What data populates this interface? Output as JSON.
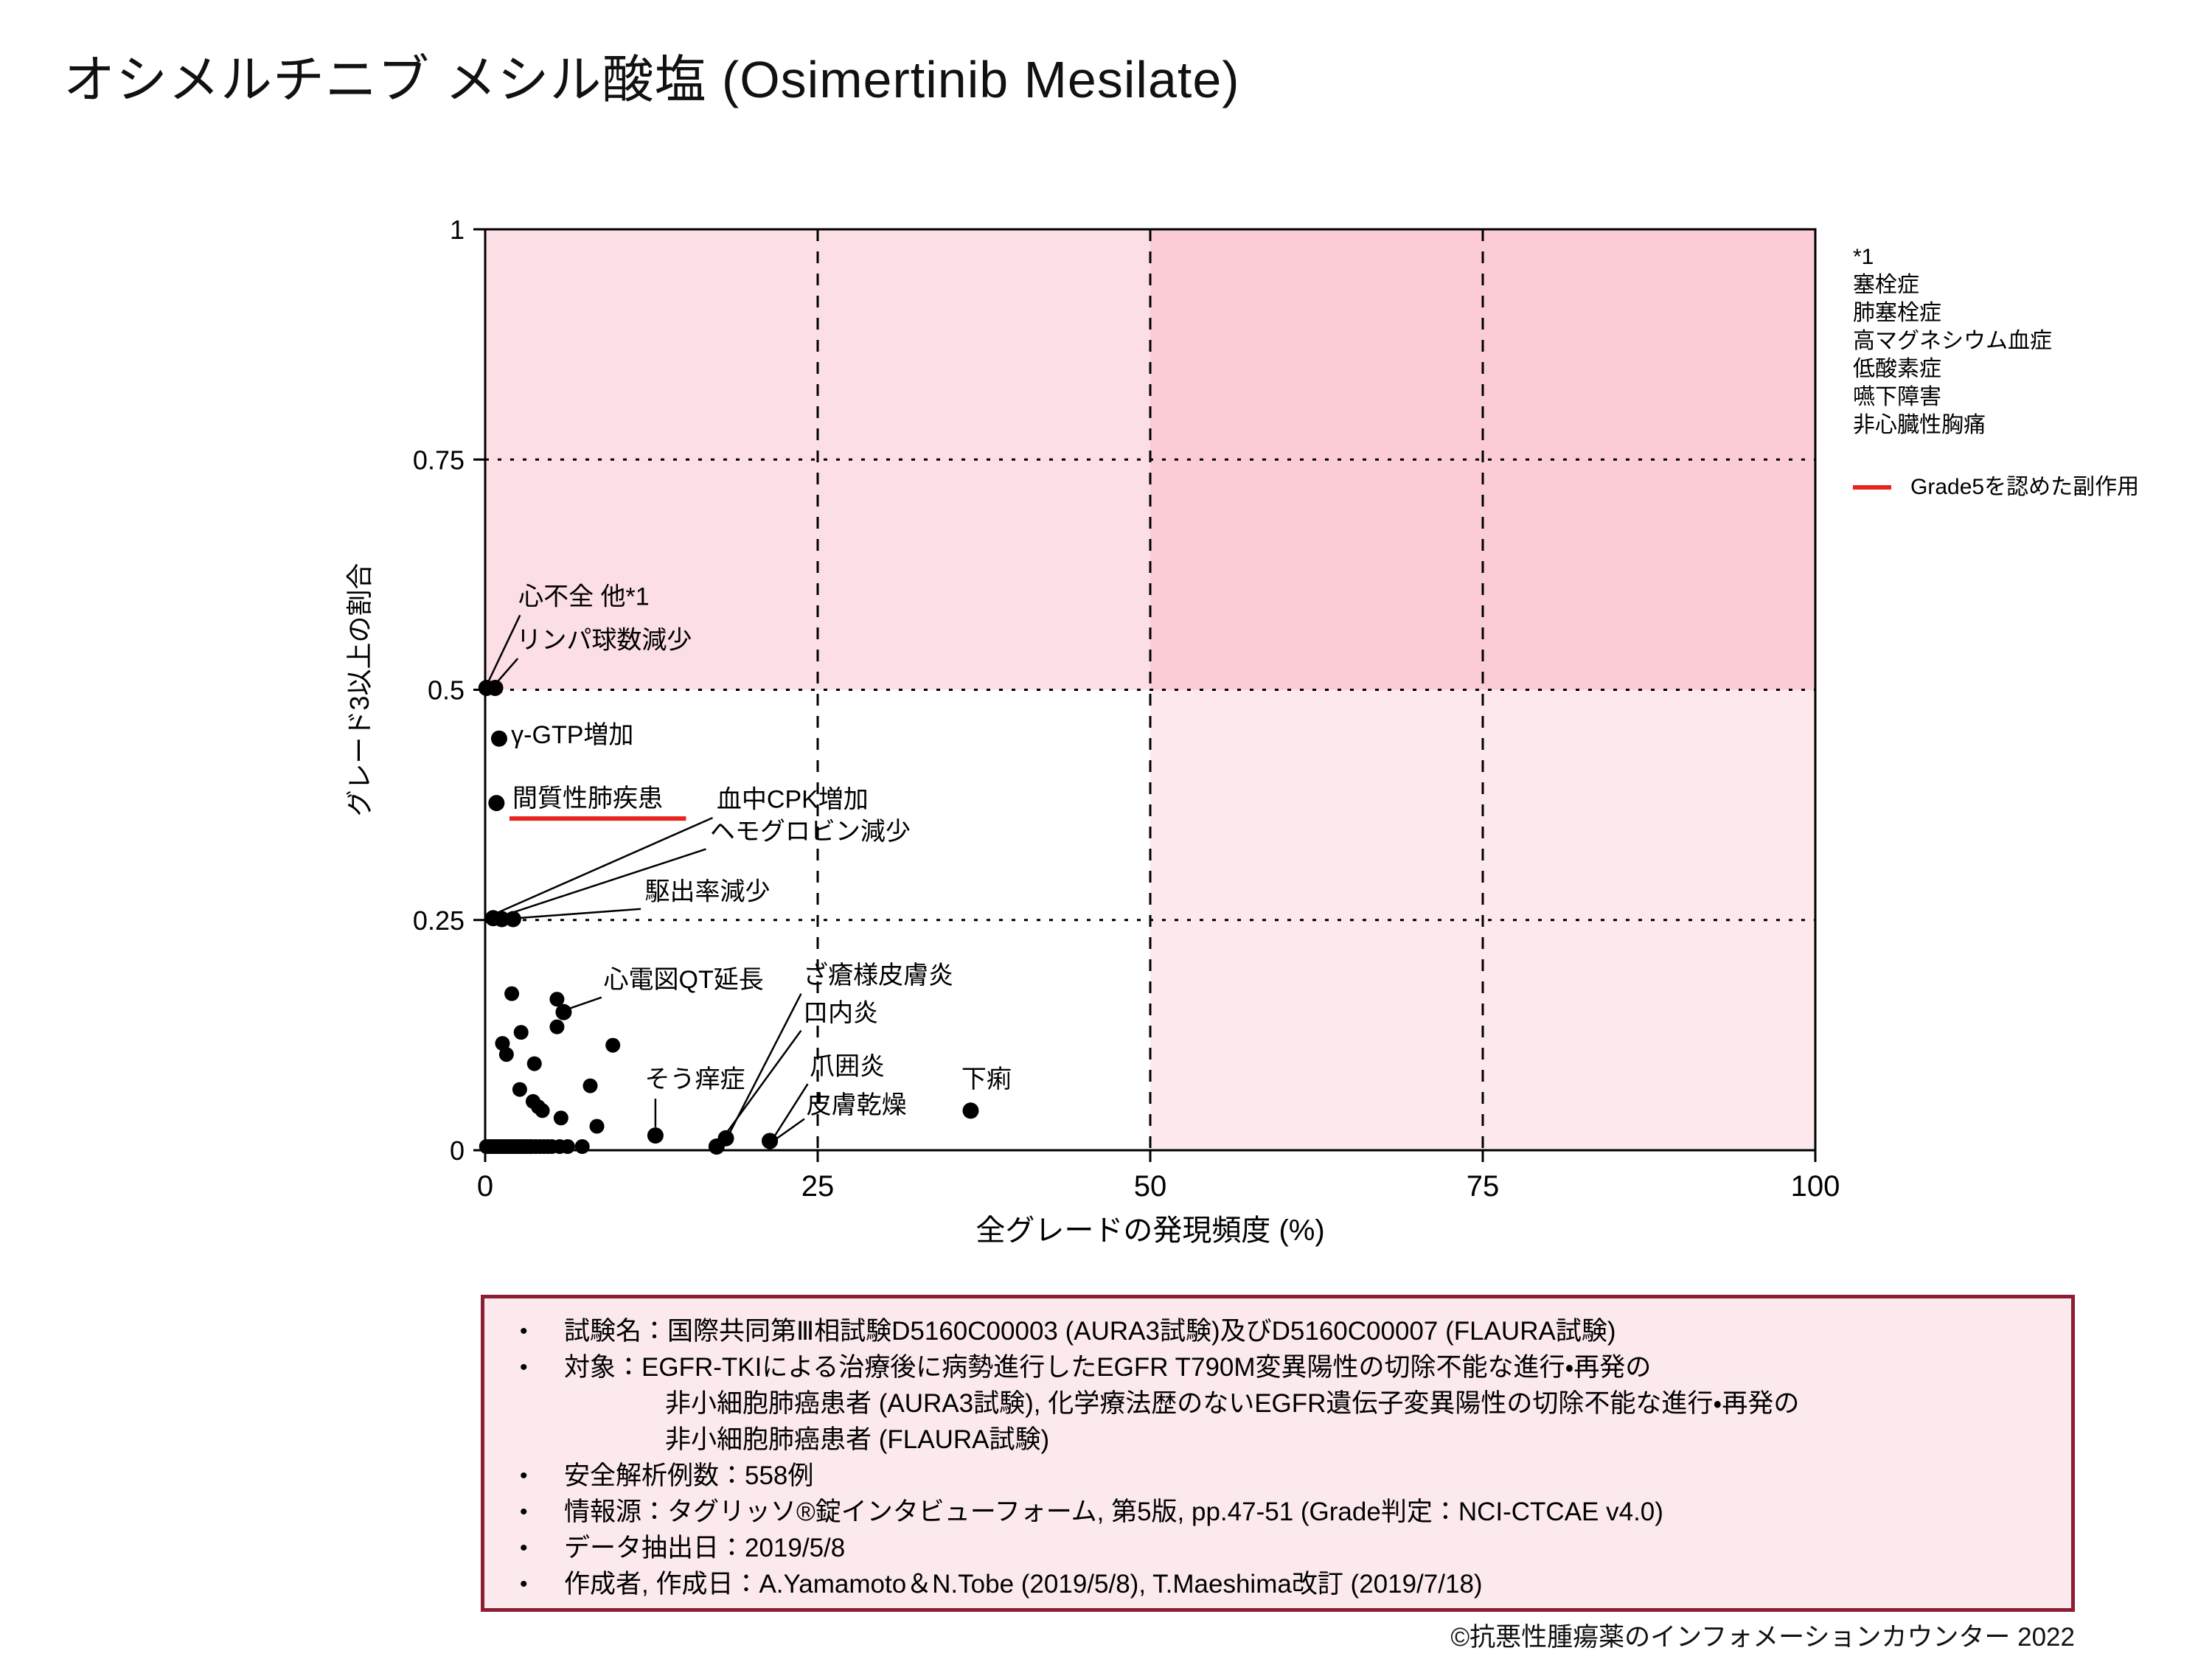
{
  "title": "オシメルチニブ メシル酸塩 (Osimertinib Mesilate)",
  "copyright": "©抗悪性腫瘍薬のインフォメーションカウンター 2022",
  "colors": {
    "grade5_red": "#e8251d",
    "region_light_pink": "#fcdee5",
    "region_dark_pink": "#fbccd6",
    "region_right_pink": "#fde8ec",
    "footer_bg": "#fbe9ed",
    "footer_border": "#8c1d33"
  },
  "legend": {
    "note_label": "*1",
    "note_items": [
      "塞栓症",
      "肺塞栓症",
      "高マグネシウム血症",
      "低酸素症",
      "嚥下障害",
      "非心臓性胸痛"
    ],
    "grade5_label": "Grade5を認めた副作用"
  },
  "footer": {
    "lines": [
      {
        "bullet": true,
        "indent": 0,
        "text": "試験名：国際共同第Ⅲ相試験D5160C00003 (AURA3試験)及びD5160C00007 (FLAURA試験)"
      },
      {
        "bullet": true,
        "indent": 0,
        "text": "対象：EGFR-TKIによる治療後に病勢進行したEGFR T790M変異陽性の切除不能な進行・再発の"
      },
      {
        "bullet": false,
        "indent": 1,
        "text": "非小細胞肺癌患者 (AURA3試験), 化学療法歴のないEGFR遺伝子変異陽性の切除不能な進行・再発の"
      },
      {
        "bullet": false,
        "indent": 1,
        "text": "非小細胞肺癌患者 (FLAURA試験)"
      },
      {
        "bullet": true,
        "indent": 0,
        "text": "安全解析例数：558例"
      },
      {
        "bullet": true,
        "indent": 0,
        "text": "情報源：タグリッソ®錠インタビューフォーム, 第5版, pp.47-51 (Grade判定：NCI-CTCAE v4.0)"
      },
      {
        "bullet": true,
        "indent": 0,
        "text": "データ抽出日：2019/5/8"
      },
      {
        "bullet": true,
        "indent": 0,
        "text": "作成者, 作成日：A.Yamamoto＆N.Tobe (2019/5/8), T.Maeshima改訂 (2019/7/18)"
      }
    ]
  },
  "chart_data": {
    "type": "scatter",
    "xlabel": "全グレードの発現頻度 (%)",
    "ylabel": "グレード3以上の割合",
    "xlim": [
      0,
      100
    ],
    "ylim": [
      0,
      1
    ],
    "grid": true,
    "x_ticks": [
      {
        "v": 0,
        "label": "0"
      },
      {
        "v": 25,
        "label": "25"
      },
      {
        "v": 50,
        "label": "50"
      },
      {
        "v": 75,
        "label": "75"
      },
      {
        "v": 100,
        "label": "100"
      }
    ],
    "y_ticks": [
      {
        "v": 0,
        "label": "0"
      },
      {
        "v": 0.25,
        "label": "0.25"
      },
      {
        "v": 0.5,
        "label": "0.5"
      },
      {
        "v": 0.75,
        "label": "0.75"
      },
      {
        "v": 1,
        "label": "1"
      }
    ],
    "grid_x": [
      25,
      50,
      75
    ],
    "grid_y": [
      0.25,
      0.5,
      0.75
    ],
    "regions": [
      {
        "x": [
          0,
          50
        ],
        "y": [
          0.5,
          1
        ],
        "color_key": "region_light_pink"
      },
      {
        "x": [
          50,
          100
        ],
        "y": [
          0.5,
          1
        ],
        "color_key": "region_dark_pink"
      },
      {
        "x": [
          50,
          100
        ],
        "y": [
          0,
          0.5
        ],
        "color_key": "region_right_pink"
      }
    ],
    "labeled_points": [
      {
        "label": "心不全 他*1",
        "x": 0.1,
        "y": 0.502,
        "lx": 2.5,
        "ly": 0.592,
        "leader": [
          2.62,
          0.581,
          0.18,
          0.507
        ]
      },
      {
        "label": "リンパ球数減少",
        "x": 0.75,
        "y": 0.502,
        "lx": 2.35,
        "ly": 0.545,
        "leader": [
          2.45,
          0.534,
          0.82,
          0.507
        ]
      },
      {
        "label": "γ-GTP増加",
        "x": 1.05,
        "y": 0.447,
        "lx": 1.95,
        "ly": 0.442
      },
      {
        "label": "間質性肺疾患",
        "x": 0.85,
        "y": 0.377,
        "lx": 2.05,
        "ly": 0.373,
        "underline": true,
        "underline_to": 15.1
      },
      {
        "label": "血中CPK増加",
        "x": 0.6,
        "y": 0.252,
        "lx": 17.4,
        "ly": 0.372,
        "leader": [
          17.1,
          0.361,
          0.78,
          0.257
        ]
      },
      {
        "label": "ヘモグロビン減少",
        "x": 1.25,
        "y": 0.251,
        "lx": 16.9,
        "ly": 0.337,
        "leader": [
          16.6,
          0.327,
          1.4,
          0.255
        ]
      },
      {
        "label": "駆出率減少",
        "x": 2.1,
        "y": 0.251,
        "lx": 12.0,
        "ly": 0.272,
        "leader": [
          11.7,
          0.262,
          2.35,
          0.252
        ]
      },
      {
        "label": "心電図QT延長",
        "x": 5.9,
        "y": 0.15,
        "lx": 8.9,
        "ly": 0.176,
        "leader": [
          8.75,
          0.166,
          6.15,
          0.153
        ]
      },
      {
        "label": "そう痒症",
        "x": 12.8,
        "y": 0.016,
        "lx": 12.0,
        "ly": 0.068,
        "leader": [
          12.8,
          0.056,
          12.8,
          0.025
        ]
      },
      {
        "label": "ざ瘡様皮膚炎",
        "x": 18.1,
        "y": 0.013,
        "lx": 23.9,
        "ly": 0.181,
        "leader": [
          23.75,
          0.17,
          18.35,
          0.018
        ]
      },
      {
        "label": "口内炎",
        "x": 17.4,
        "y": 0.004,
        "lx": 23.9,
        "ly": 0.14,
        "leader": [
          23.75,
          0.13,
          17.65,
          0.009
        ]
      },
      {
        "label": "爪囲炎",
        "x": 21.4,
        "y": 0.01,
        "lx": 24.4,
        "ly": 0.082,
        "leader": [
          24.25,
          0.072,
          21.7,
          0.014
        ]
      },
      {
        "label": "皮膚乾燥",
        "x": 21.4,
        "y": 0.01,
        "lx": 24.15,
        "ly": 0.04,
        "leader": [
          24.0,
          0.034,
          21.75,
          0.011
        ]
      },
      {
        "label": "下痢",
        "x": 36.5,
        "y": 0.043,
        "lx": 35.8,
        "ly": 0.068
      }
    ],
    "unlabeled_points": [
      [
        2.0,
        0.17
      ],
      [
        5.4,
        0.164
      ],
      [
        5.4,
        0.134
      ],
      [
        2.7,
        0.128
      ],
      [
        1.3,
        0.116
      ],
      [
        9.6,
        0.114
      ],
      [
        1.6,
        0.104
      ],
      [
        3.7,
        0.094
      ],
      [
        7.9,
        0.07
      ],
      [
        2.6,
        0.066
      ],
      [
        3.6,
        0.053
      ],
      [
        4.0,
        0.047
      ],
      [
        4.3,
        0.043
      ],
      [
        5.7,
        0.035
      ],
      [
        8.4,
        0.026
      ]
    ],
    "baseline_points": {
      "y": 0.004,
      "x": [
        0.1,
        0.3,
        0.5,
        0.7,
        0.9,
        1.1,
        1.3,
        1.5,
        1.7,
        1.9,
        2.1,
        2.3,
        2.5,
        2.7,
        2.9,
        3.1,
        3.3,
        3.5,
        3.8,
        4.1,
        4.4,
        4.7,
        5.0,
        5.6,
        6.2,
        7.3
      ]
    },
    "legend_position": "right"
  }
}
